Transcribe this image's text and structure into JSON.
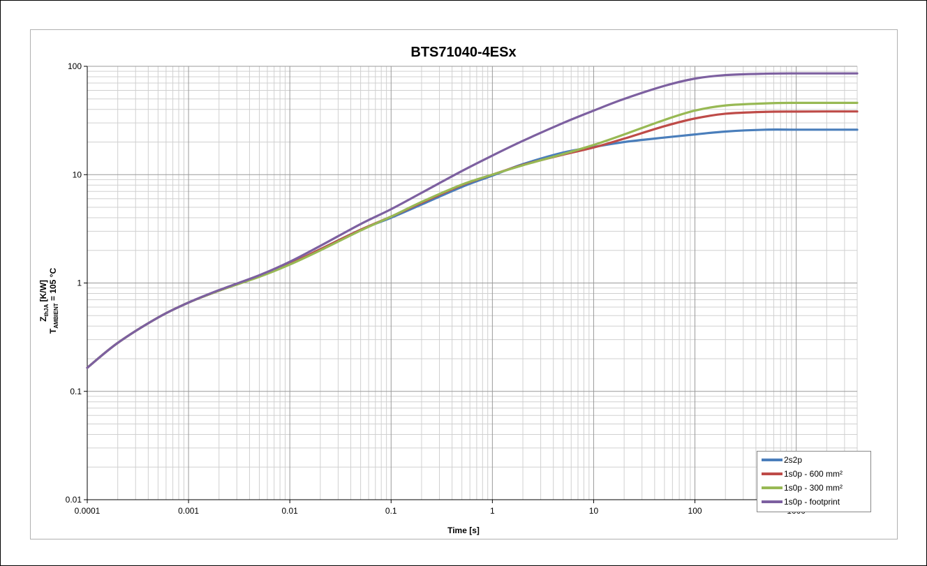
{
  "chart_data": {
    "type": "line",
    "title": "BTS71040-4ESx",
    "xlabel": "Time [s]",
    "ylabel_main": "Z",
    "ylabel_main_sub": "thJA",
    "ylabel_main_rest": " [K/W]",
    "ylabel_second": "T",
    "ylabel_second_sub": "AMBIENT",
    "ylabel_second_rest": " = 105 °C",
    "x_scale": "log",
    "y_scale": "log",
    "xlim": [
      0.0001,
      4000
    ],
    "ylim": [
      0.01,
      100
    ],
    "x_ticks": [
      "0.0001",
      "0.001",
      "0.01",
      "0.1",
      "1",
      "10",
      "100",
      "1000"
    ],
    "y_ticks": [
      "0.01",
      "0.1",
      "1",
      "10",
      "100"
    ],
    "grid": true,
    "legend_position": "bottom-right",
    "series": [
      {
        "name": "2s2p",
        "color": "#4a7ebb",
        "x": [
          0.0001,
          0.0002,
          0.0005,
          0.001,
          0.002,
          0.005,
          0.01,
          0.02,
          0.05,
          0.1,
          0.2,
          0.5,
          1,
          2,
          5,
          10,
          20,
          50,
          100,
          200,
          500,
          1000,
          2000,
          4000
        ],
        "y": [
          0.165,
          0.28,
          0.48,
          0.66,
          0.85,
          1.15,
          1.5,
          2.05,
          3.1,
          4.0,
          5.3,
          7.7,
          9.8,
          12.5,
          16.0,
          18.0,
          20.0,
          22.0,
          23.5,
          25.0,
          26.0,
          26.0,
          26.0,
          26.0
        ]
      },
      {
        "name": "1s0p - 600 mm²",
        "color": "#be4b48",
        "x": [
          0.0001,
          0.0002,
          0.0005,
          0.001,
          0.002,
          0.005,
          0.01,
          0.02,
          0.05,
          0.1,
          0.2,
          0.5,
          1,
          2,
          5,
          10,
          20,
          50,
          100,
          200,
          500,
          1000,
          2000,
          4000
        ],
        "y": [
          0.165,
          0.28,
          0.48,
          0.66,
          0.85,
          1.15,
          1.5,
          2.05,
          3.1,
          4.1,
          5.5,
          8.0,
          10.0,
          12.3,
          15.3,
          17.8,
          21.5,
          28.0,
          33.0,
          36.5,
          38.0,
          38.2,
          38.3,
          38.3
        ]
      },
      {
        "name": "1s0p - 300 mm²",
        "color": "#98b954",
        "x": [
          0.0001,
          0.0002,
          0.0005,
          0.001,
          0.002,
          0.005,
          0.01,
          0.02,
          0.05,
          0.1,
          0.2,
          0.5,
          1,
          2,
          5,
          10,
          20,
          50,
          100,
          200,
          500,
          1000,
          2000,
          4000
        ],
        "y": [
          0.165,
          0.28,
          0.48,
          0.66,
          0.85,
          1.14,
          1.48,
          2.0,
          3.05,
          4.1,
          5.6,
          8.1,
          10.0,
          12.2,
          15.5,
          18.8,
          23.5,
          32.0,
          39.0,
          43.5,
          45.5,
          46.0,
          46.0,
          46.0
        ]
      },
      {
        "name": "1s0p - footprint",
        "color": "#7d60a0",
        "x": [
          0.0001,
          0.0002,
          0.0005,
          0.001,
          0.002,
          0.005,
          0.01,
          0.02,
          0.05,
          0.1,
          0.2,
          0.5,
          1,
          2,
          5,
          10,
          20,
          50,
          100,
          200,
          500,
          1000,
          2000,
          4000
        ],
        "y": [
          0.165,
          0.28,
          0.48,
          0.66,
          0.86,
          1.18,
          1.57,
          2.2,
          3.5,
          4.8,
          6.8,
          10.8,
          15.0,
          20.5,
          30.0,
          39.0,
          50.0,
          66.0,
          77.0,
          83.0,
          85.5,
          86.0,
          86.0,
          86.0
        ]
      }
    ]
  }
}
